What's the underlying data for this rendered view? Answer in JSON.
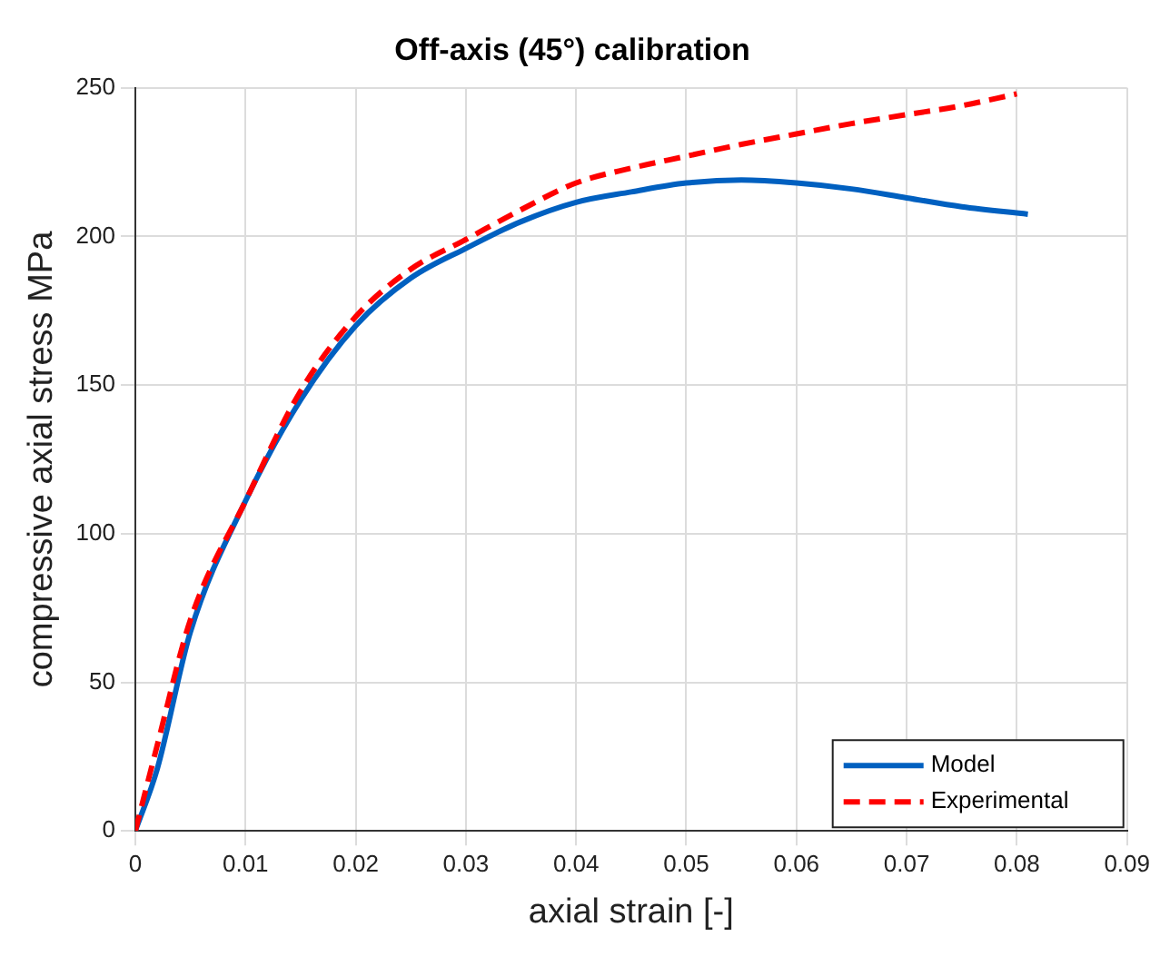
{
  "chart_data": {
    "type": "line",
    "title": "Off-axis (45°) calibration",
    "xlabel": "axial strain [-]",
    "ylabel": "compressive axial stress MPa",
    "xlim": [
      0,
      0.09
    ],
    "xticks": [
      0,
      0.01,
      0.02,
      0.03,
      0.04,
      0.05,
      0.06,
      0.07,
      0.08,
      0.09
    ],
    "ylim": [
      0,
      250
    ],
    "yticks": [
      0,
      50,
      100,
      150,
      200,
      250
    ],
    "grid": true,
    "legend": "bottom right",
    "marker": "none",
    "series": [
      {
        "name": "Model",
        "color": "#0060c0",
        "line_style": "solid",
        "x": [
          0,
          0.002,
          0.005,
          0.01,
          0.015,
          0.02,
          0.025,
          0.03,
          0.035,
          0.04,
          0.045,
          0.05,
          0.055,
          0.06,
          0.065,
          0.07,
          0.075,
          0.081
        ],
        "values": [
          0,
          21,
          67,
          111,
          145,
          170,
          186,
          196,
          205,
          211.5,
          215,
          218,
          219,
          218,
          216,
          213,
          210,
          207.5
        ]
      },
      {
        "name": "Experimental",
        "color": "#ff0000",
        "line_style": "dashed",
        "x": [
          0,
          0.002,
          0.005,
          0.01,
          0.015,
          0.02,
          0.025,
          0.03,
          0.035,
          0.04,
          0.045,
          0.05,
          0.055,
          0.06,
          0.065,
          0.07,
          0.075,
          0.08
        ],
        "values": [
          0,
          29,
          71,
          111,
          148,
          173,
          189,
          199,
          209,
          218,
          223,
          227,
          231,
          234.5,
          238,
          241,
          244,
          248
        ]
      }
    ]
  }
}
